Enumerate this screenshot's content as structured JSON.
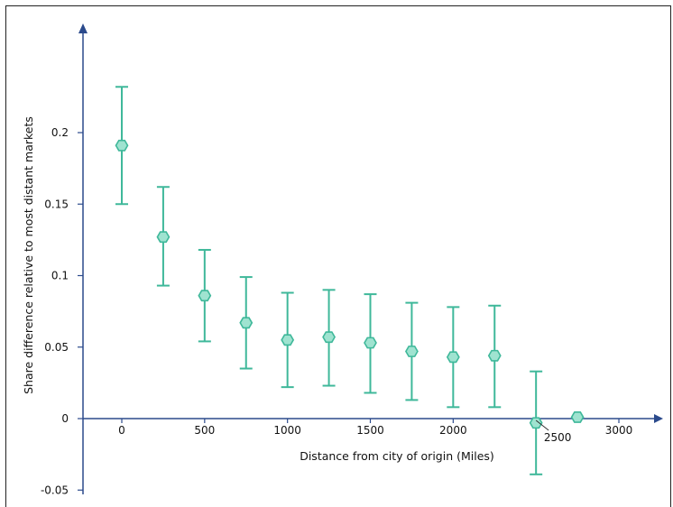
{
  "chart_data": {
    "type": "scatter",
    "title": "",
    "xlabel": "Distance from city of origin (Miles)",
    "ylabel": "Share difference relative to most distant markets",
    "xlim": [
      -235,
      3240
    ],
    "ylim": [
      -0.052,
      0.278
    ],
    "x_ticks": [
      {
        "value": 0,
        "label": "0"
      },
      {
        "value": 500,
        "label": "500"
      },
      {
        "value": 1000,
        "label": "1000"
      },
      {
        "value": 1500,
        "label": "1500"
      },
      {
        "value": 2000,
        "label": "2000"
      },
      {
        "value": 2500,
        "label": "2500"
      },
      {
        "value": 3000,
        "label": "3000"
      }
    ],
    "y_ticks": [
      {
        "value": -0.05,
        "label": "-0.05"
      },
      {
        "value": 0,
        "label": "0"
      },
      {
        "value": 0.05,
        "label": "0.05"
      },
      {
        "value": 0.1,
        "label": "0.1"
      },
      {
        "value": 0.15,
        "label": "0.15"
      },
      {
        "value": 0.2,
        "label": "0.2"
      }
    ],
    "points": [
      {
        "x": 0,
        "y": 0.191,
        "lo": 0.15,
        "hi": 0.232
      },
      {
        "x": 250,
        "y": 0.127,
        "lo": 0.093,
        "hi": 0.162
      },
      {
        "x": 500,
        "y": 0.086,
        "lo": 0.054,
        "hi": 0.118
      },
      {
        "x": 750,
        "y": 0.067,
        "lo": 0.035,
        "hi": 0.099
      },
      {
        "x": 1000,
        "y": 0.055,
        "lo": 0.022,
        "hi": 0.088
      },
      {
        "x": 1250,
        "y": 0.057,
        "lo": 0.023,
        "hi": 0.09
      },
      {
        "x": 1500,
        "y": 0.053,
        "lo": 0.018,
        "hi": 0.087
      },
      {
        "x": 1750,
        "y": 0.047,
        "lo": 0.013,
        "hi": 0.081
      },
      {
        "x": 2000,
        "y": 0.043,
        "lo": 0.008,
        "hi": 0.078
      },
      {
        "x": 2250,
        "y": 0.044,
        "lo": 0.008,
        "hi": 0.079
      },
      {
        "x": 2500,
        "y": -0.003,
        "lo": -0.039,
        "hi": 0.033
      },
      {
        "x": 2750,
        "y": 0.001,
        "lo": null,
        "hi": null
      }
    ],
    "colors": {
      "axis": "#2b4a8c",
      "errorbar": "#3fb89a",
      "marker_fill": "#9fe3d0",
      "marker_stroke": "#3fb89a"
    },
    "grid": false
  }
}
